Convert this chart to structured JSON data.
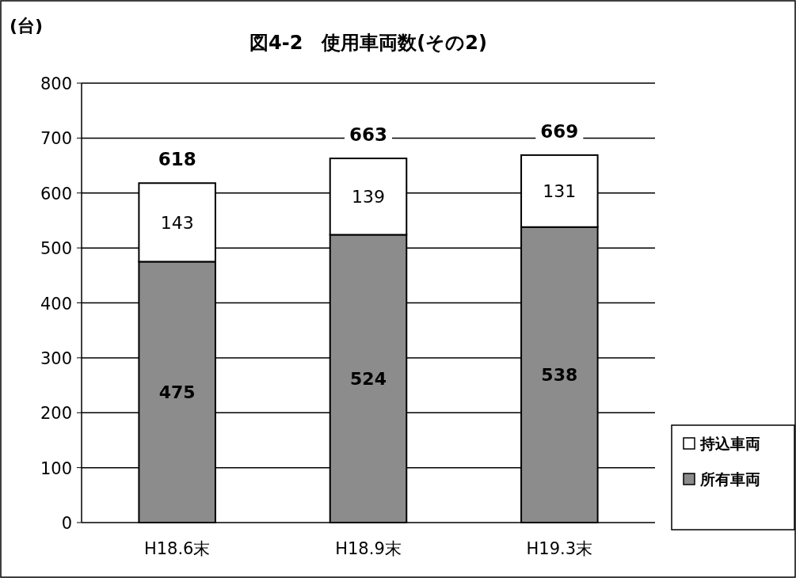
{
  "chart_data": {
    "type": "bar",
    "title": "図4-2　使用車両数(その2)",
    "ylabel": "(台)",
    "categories": [
      "H18.6末",
      "H18.9末",
      "H19.3末"
    ],
    "stacked": true,
    "series": [
      {
        "name": "所有車両",
        "color": "#8c8c8c",
        "values": [
          475,
          524,
          538
        ]
      },
      {
        "name": "持込車両",
        "color": "#ffffff",
        "values": [
          143,
          139,
          131
        ]
      }
    ],
    "totals": [
      "618",
      "663",
      "669"
    ],
    "data_labels": true,
    "ylim": [
      0,
      800
    ],
    "yticks": [
      0,
      100,
      200,
      300,
      400,
      500,
      600,
      700,
      800
    ],
    "grid": "y",
    "legend": "right"
  }
}
